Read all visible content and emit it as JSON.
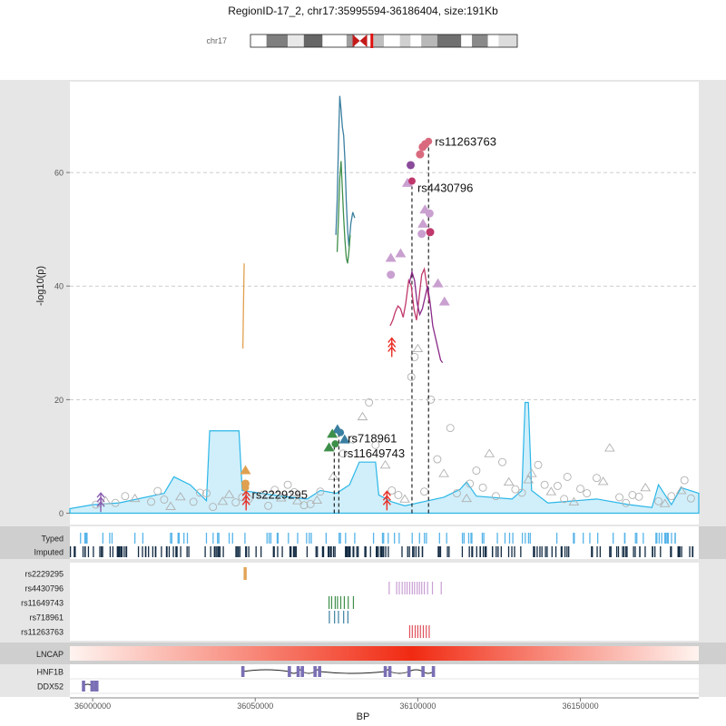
{
  "chart_data": {
    "type": "scatter",
    "title": "RegionID-17_2, chr17:35995594-36186404, size:191Kb",
    "chromosome": "chr17",
    "xlabel": "BP",
    "ylabel": "-log10(p)",
    "xlim": [
      35993000,
      36186404
    ],
    "ylim": [
      -2,
      76
    ],
    "x_ticks": [
      36000000,
      36050000,
      36100000,
      36150000
    ],
    "x_tick_labels": [
      "36000000",
      "36050000",
      "36100000",
      "36150000"
    ],
    "y_ticks": [
      0,
      20,
      40,
      60
    ],
    "y_tick_labels": [
      "0",
      "20",
      "40",
      "60"
    ],
    "grid": "horizontal dashed",
    "lead_snps": [
      {
        "name": "rs11263763",
        "x": 36103300,
        "y": 65.5,
        "color": "#d96a7e"
      },
      {
        "name": "rs4430796",
        "x": 36098200,
        "y": 58.5,
        "color": "#c0386b"
      },
      {
        "name": "rs718961",
        "x": 36076200,
        "y": 14.2,
        "color": "#3a7fa0"
      },
      {
        "name": "rs11649743",
        "x": 36074600,
        "y": 12.2,
        "color": "#3e8f4a"
      },
      {
        "name": "rs2229295",
        "x": 36047000,
        "y": 4.5,
        "color": "#e0a050"
      }
    ],
    "colored_points": [
      {
        "x": 36101500,
        "y": 64.5,
        "shape": "circle",
        "color": "#d96a7e"
      },
      {
        "x": 36102300,
        "y": 65.0,
        "shape": "circle",
        "color": "#d96a7e"
      },
      {
        "x": 36100700,
        "y": 63.2,
        "shape": "circle",
        "color": "#d96a7e"
      },
      {
        "x": 36097800,
        "y": 61.3,
        "shape": "circle",
        "color": "#8a4b9a"
      },
      {
        "x": 36096800,
        "y": 58.2,
        "shape": "triangle",
        "color": "#c9a0d0"
      },
      {
        "x": 36102200,
        "y": 53.5,
        "shape": "triangle",
        "color": "#c9a0d0"
      },
      {
        "x": 36103600,
        "y": 52.8,
        "shape": "circle",
        "color": "#c9a0d0"
      },
      {
        "x": 36101600,
        "y": 51.0,
        "shape": "triangle",
        "color": "#c9a0d0"
      },
      {
        "x": 36101200,
        "y": 49.2,
        "shape": "circle",
        "color": "#c9a0d0"
      },
      {
        "x": 36103800,
        "y": 49.5,
        "shape": "circle",
        "color": "#c0386b"
      },
      {
        "x": 36094700,
        "y": 45.8,
        "shape": "triangle",
        "color": "#c9a0d0"
      },
      {
        "x": 36091700,
        "y": 45.0,
        "shape": "triangle",
        "color": "#c9a0d0"
      },
      {
        "x": 36091700,
        "y": 42.0,
        "shape": "circle",
        "color": "#c9a0d0"
      },
      {
        "x": 36106200,
        "y": 40.5,
        "shape": "triangle",
        "color": "#c9a0d0"
      },
      {
        "x": 36108200,
        "y": 37.3,
        "shape": "triangle",
        "color": "#c9a0d0"
      },
      {
        "x": 36075300,
        "y": 14.8,
        "shape": "triangle",
        "color": "#3a7fa0"
      },
      {
        "x": 36073700,
        "y": 14.0,
        "shape": "triangle",
        "color": "#3e8f4a"
      },
      {
        "x": 36077500,
        "y": 13.0,
        "shape": "triangle",
        "color": "#3a7fa0"
      },
      {
        "x": 36072700,
        "y": 11.6,
        "shape": "triangle",
        "color": "#3e8f4a"
      },
      {
        "x": 36047000,
        "y": 7.6,
        "shape": "triangle",
        "color": "#e0a050"
      },
      {
        "x": 36047000,
        "y": 5.2,
        "shape": "circle",
        "color": "#e0a050"
      }
    ],
    "gray_points": [
      [
        36001000,
        1.5
      ],
      [
        36004000,
        2.2
      ],
      [
        36007000,
        1.8
      ],
      [
        36010000,
        3.0
      ],
      [
        36013000,
        2.6
      ],
      [
        36018000,
        2.0
      ],
      [
        36022000,
        2.4
      ],
      [
        36027000,
        2.9
      ],
      [
        36031000,
        2.0
      ],
      [
        36035000,
        3.5
      ],
      [
        36040000,
        2.1
      ],
      [
        36044000,
        1.9
      ],
      [
        36048000,
        2.5
      ],
      [
        36052000,
        3.2
      ],
      [
        36056000,
        4.1
      ],
      [
        36060000,
        5.0
      ],
      [
        36063000,
        2.2
      ],
      [
        36067000,
        1.6
      ],
      [
        36070000,
        3.8
      ],
      [
        36074000,
        6.5
      ],
      [
        36077000,
        10.5
      ],
      [
        36080000,
        13.0
      ],
      [
        36083000,
        17.0
      ],
      [
        36085000,
        19.5
      ],
      [
        36087000,
        12.0
      ],
      [
        36090000,
        8.5
      ],
      [
        36092000,
        4.0
      ],
      [
        36094000,
        3.2
      ],
      [
        36096000,
        2.5
      ],
      [
        36098000,
        24.0
      ],
      [
        36099000,
        27.5
      ],
      [
        36100000,
        29.0
      ],
      [
        36104000,
        20.0
      ],
      [
        36106000,
        9.5
      ],
      [
        36108000,
        7.0
      ],
      [
        36110000,
        15.0
      ],
      [
        36112000,
        3.5
      ],
      [
        36115000,
        2.6
      ],
      [
        36118000,
        7.5
      ],
      [
        36120000,
        4.5
      ],
      [
        36122000,
        10.5
      ],
      [
        36124000,
        3.0
      ],
      [
        36126000,
        9.0
      ],
      [
        36128000,
        5.5
      ],
      [
        36130000,
        4.2
      ],
      [
        36132000,
        3.6
      ],
      [
        36135000,
        7.0
      ],
      [
        36137000,
        8.5
      ],
      [
        36139000,
        5.0
      ],
      [
        36141000,
        3.8
      ],
      [
        36143000,
        4.8
      ],
      [
        36145000,
        2.5
      ],
      [
        36148000,
        2.0
      ],
      [
        36152000,
        3.5
      ],
      [
        36155000,
        6.2
      ],
      [
        36159000,
        11.5
      ],
      [
        36162000,
        2.8
      ],
      [
        36166000,
        3.2
      ],
      [
        36170000,
        4.5
      ],
      [
        36174000,
        2.1
      ],
      [
        36178000,
        3.0
      ],
      [
        36181000,
        4.0
      ],
      [
        36184000,
        2.6
      ],
      [
        36020000,
        3.9
      ],
      [
        36024000,
        1.2
      ],
      [
        36033000,
        3.6
      ],
      [
        36037000,
        1.1
      ],
      [
        36042000,
        3.3
      ],
      [
        36046000,
        2.8
      ],
      [
        36054000,
        1.3
      ],
      [
        36058000,
        2.7
      ],
      [
        36062000,
        3.7
      ],
      [
        36065000,
        1.4
      ],
      [
        36069000,
        2.3
      ],
      [
        36102000,
        3.8
      ],
      [
        36116000,
        5.2
      ],
      [
        36134000,
        5.9
      ],
      [
        36146000,
        6.4
      ],
      [
        36150000,
        4.3
      ],
      [
        36157000,
        5.6
      ],
      [
        36164000,
        1.8
      ],
      [
        36168000,
        2.9
      ],
      [
        36176000,
        1.7
      ],
      [
        36182000,
        5.8
      ]
    ],
    "arrows": [
      {
        "x": 36047200,
        "y": 0.5,
        "color": "#e8322a"
      },
      {
        "x": 36090500,
        "y": 0.5,
        "color": "#e8322a"
      },
      {
        "x": 36092000,
        "y": 27.5,
        "color": "#e8322a"
      },
      {
        "x": 36002500,
        "y": 0.2,
        "color": "#8a5fb0"
      }
    ],
    "annotation_density": {
      "color": "#2bb6e8",
      "x": [
        35993000,
        36000000,
        36008000,
        36022000,
        36025000,
        36030000,
        36035000,
        36036000,
        36045000,
        36046000,
        36058000,
        36066000,
        36070000,
        36075000,
        36079000,
        36082000,
        36087000,
        36088000,
        36092000,
        36096000,
        36108000,
        36113000,
        36115000,
        36118000,
        36129000,
        36132000,
        36133000,
        36134000,
        36135000,
        36140000,
        36155000,
        36165000,
        36172000,
        36174000,
        36178000,
        36181000,
        36186404
      ],
      "y": [
        0.8,
        1.5,
        1.8,
        3.5,
        6.4,
        5.0,
        2.2,
        14.5,
        14.5,
        4.0,
        3.0,
        2.5,
        4.0,
        3.5,
        5.0,
        9.0,
        9.0,
        3.2,
        2.0,
        1.3,
        2.8,
        4.2,
        5.5,
        3.0,
        2.5,
        4.0,
        19.5,
        19.5,
        4.0,
        1.8,
        2.5,
        1.5,
        1.0,
        5.0,
        1.5,
        4.5,
        3.5
      ]
    },
    "curves": [
      {
        "color": "#e0a050",
        "x": [
          36046200,
          36046300,
          36046400,
          36046500,
          36046600
        ],
        "y": [
          29,
          33,
          37,
          40.5,
          44
        ]
      },
      {
        "color": "#3a7fa0",
        "x": [
          36074800,
          36075200,
          36075600,
          36076000,
          36076400,
          36076800,
          36077200,
          36077600,
          36078000,
          36078400,
          36078800,
          36079400,
          36080000,
          36080600
        ],
        "y": [
          49,
          55,
          65,
          73.5,
          71,
          68,
          66.5,
          62,
          55,
          50,
          47,
          51,
          53,
          52
        ]
      },
      {
        "color": "#3e8f4a",
        "x": [
          36075200,
          36075600,
          36076000,
          36076400,
          36076800,
          36077200,
          36077600,
          36078000,
          36078400,
          36078800,
          36079200
        ],
        "y": [
          46,
          52,
          59,
          62,
          57,
          52,
          48,
          45,
          44,
          46,
          49
        ]
      },
      {
        "color": "#c0386b",
        "x": [
          36091500,
          36092300,
          36093100,
          36093900,
          36094700,
          36095500,
          36096300,
          36097200,
          36098000,
          36098800,
          36099600,
          36100400,
          36101200,
          36102000,
          36102800,
          36103600
        ],
        "y": [
          33,
          34,
          35.5,
          36.5,
          36,
          34.5,
          37,
          41,
          40,
          36,
          34,
          38,
          42,
          43,
          40,
          37
        ]
      },
      {
        "color": "#8a2a8a",
        "x": [
          36097400,
          36098200,
          36099000,
          36099800,
          36100600,
          36101400,
          36102200,
          36103000,
          36103800,
          36104600,
          36105400,
          36106200,
          36107000,
          36107600
        ],
        "y": [
          40.5,
          42.5,
          41,
          37,
          35,
          36,
          38,
          40,
          37,
          33,
          31,
          29,
          27,
          26.5
        ]
      }
    ],
    "lead_lines_x": [
      36074300,
      36075700,
      36098200,
      36103300
    ],
    "tracks": {
      "rows": [
        "Typed",
        "Imputed"
      ],
      "row_colors": [
        "#56b4e9",
        "#132b43"
      ],
      "snp_rows": [
        {
          "name": "rs2229295",
          "color": "#e0a050",
          "x": [
            36046600,
            36046900,
            36047200
          ]
        },
        {
          "name": "rs4430796",
          "color": "#c99ed3",
          "x": [
            36091200,
            36093500,
            36094300,
            36095200,
            36096000,
            36096700,
            36097500,
            36098300,
            36099000,
            36099800,
            36100500,
            36101200,
            36102000,
            36103000,
            36104500,
            36107200
          ]
        },
        {
          "name": "rs11649743",
          "color": "#3e8f4a",
          "x": [
            36072700,
            36073500,
            36074600,
            36075300,
            36076300,
            36077400,
            36078600,
            36080200
          ]
        },
        {
          "name": "rs718961",
          "color": "#3a7fa0",
          "x": [
            36072800,
            36074400,
            36075600,
            36077200,
            36078500
          ]
        },
        {
          "name": "rs11263763",
          "color": "#e0505a",
          "x": [
            36097500,
            36098300,
            36099200,
            36100000,
            36100800,
            36101700,
            36102600,
            36103500
          ]
        }
      ],
      "epigenome_label": "LNCAP",
      "epigenome_peak_x": 36098000,
      "genes": [
        {
          "name": "HNF1B",
          "start": 36046200,
          "end": 36105200,
          "exons": [
            36046200,
            36060500,
            36063200,
            36064500,
            36068400,
            36069800,
            36090000,
            36091400,
            36097300,
            36101600,
            36104800
          ]
        },
        {
          "name": "DDX52",
          "start": 35997000,
          "end": 36001500,
          "exons": [
            35997200,
            35999800,
            36000800,
            36001300
          ]
        }
      ]
    },
    "ideogram": {
      "label": "chr17",
      "bands": [
        {
          "x0": 0.0,
          "x1": 0.06,
          "color": "#ffffff"
        },
        {
          "x0": 0.06,
          "x1": 0.14,
          "color": "#7f7f7f"
        },
        {
          "x0": 0.14,
          "x1": 0.2,
          "color": "#e8e8e8"
        },
        {
          "x0": 0.2,
          "x1": 0.27,
          "color": "#666666"
        },
        {
          "x0": 0.27,
          "x1": 0.36,
          "color": "#ffffff"
        },
        {
          "x0": 0.36,
          "x1": 0.39,
          "color": "#a0a0a0"
        },
        {
          "x0": 0.43,
          "x1": 0.46,
          "color": "#ffffff"
        },
        {
          "x0": 0.46,
          "x1": 0.5,
          "color": "#bfbfbf"
        },
        {
          "x0": 0.5,
          "x1": 0.56,
          "color": "#ffffff"
        },
        {
          "x0": 0.56,
          "x1": 0.6,
          "color": "#d0d0d0"
        },
        {
          "x0": 0.6,
          "x1": 0.64,
          "color": "#ffffff"
        },
        {
          "x0": 0.64,
          "x1": 0.7,
          "color": "#b8b8b8"
        },
        {
          "x0": 0.7,
          "x1": 0.79,
          "color": "#707070"
        },
        {
          "x0": 0.79,
          "x1": 0.83,
          "color": "#ffffff"
        },
        {
          "x0": 0.83,
          "x1": 0.89,
          "color": "#8a8a8a"
        },
        {
          "x0": 0.89,
          "x1": 0.93,
          "color": "#ffffff"
        },
        {
          "x0": 0.93,
          "x1": 1.0,
          "color": "#dcdcdc"
        }
      ],
      "centromere_color": "#c41a1a",
      "centromere_at": 0.41,
      "highlight_at": 0.455,
      "highlight_color": "#e01010"
    }
  }
}
